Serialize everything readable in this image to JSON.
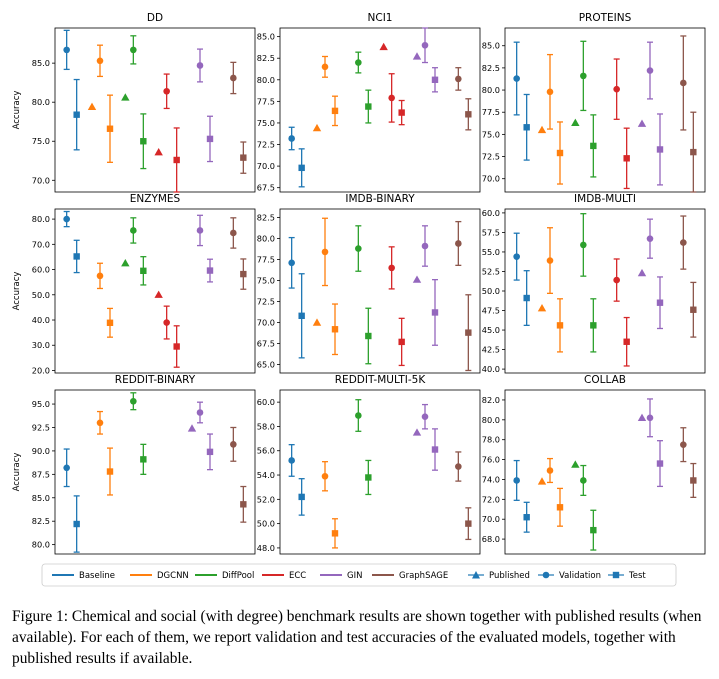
{
  "caption": "Figure 1: Chemical and social (with degree) benchmark results are shown together with published results (when available). For each of them, we report validation and test accuracies of the evaluated models, together with published results if available.",
  "colors": {
    "Baseline": "#1f77b4",
    "DGCNN": "#ff7f0e",
    "DiffPool": "#2ca02c",
    "ECC": "#d62728",
    "GIN": "#9467bd",
    "GraphSAGE": "#8c564b"
  },
  "chart_data": [
    {
      "type": "scatter",
      "title": "DD",
      "ylabel": "Accuracy",
      "ylim": [
        68.5,
        89.5
      ],
      "yticks": [
        70.0,
        75.0,
        80.0,
        85.0,
        90.0
      ],
      "models": [
        "Baseline",
        "DGCNN",
        "DiffPool",
        "ECC",
        "GIN",
        "GraphSAGE"
      ],
      "published": [
        null,
        79.4,
        80.6,
        73.6,
        null,
        null
      ],
      "validation": [
        [
          86.7,
          2.5
        ],
        [
          85.3,
          2.0
        ],
        [
          86.7,
          1.8
        ],
        [
          81.4,
          2.2
        ],
        [
          84.7,
          2.1
        ],
        [
          83.1,
          2.0
        ]
      ],
      "test": [
        [
          78.4,
          4.5
        ],
        [
          76.6,
          4.3
        ],
        [
          75.0,
          3.5
        ],
        [
          72.6,
          4.1
        ],
        [
          75.3,
          2.9
        ],
        [
          72.9,
          2.0
        ]
      ]
    },
    {
      "type": "scatter",
      "title": "NCI1",
      "ylim": [
        67.0,
        86.0
      ],
      "yticks": [
        67.5,
        70.0,
        72.5,
        75.0,
        77.5,
        80.0,
        82.5,
        85.0
      ],
      "models": [
        "Baseline",
        "DGCNN",
        "DiffPool",
        "ECC",
        "GIN",
        "GraphSAGE"
      ],
      "published": [
        null,
        74.4,
        null,
        83.8,
        82.7,
        null
      ],
      "validation": [
        [
          73.2,
          1.3
        ],
        [
          81.5,
          1.2
        ],
        [
          82.0,
          1.2
        ],
        [
          77.9,
          2.8
        ],
        [
          84.0,
          2.0
        ],
        [
          80.1,
          1.3
        ]
      ],
      "test": [
        [
          69.8,
          2.2
        ],
        [
          76.4,
          1.7
        ],
        [
          76.9,
          1.9
        ],
        [
          76.2,
          1.4
        ],
        [
          80.0,
          1.4
        ],
        [
          76.0,
          1.8
        ]
      ]
    },
    {
      "type": "scatter",
      "title": "PROTEINS",
      "ylim": [
        68.5,
        87.0
      ],
      "yticks": [
        70.0,
        72.5,
        75.0,
        77.5,
        80.0,
        82.5,
        85.0
      ],
      "models": [
        "Baseline",
        "DGCNN",
        "DiffPool",
        "ECC",
        "GIN",
        "GraphSAGE"
      ],
      "published": [
        null,
        75.5,
        76.3,
        null,
        76.2,
        null
      ],
      "validation": [
        [
          81.3,
          4.1
        ],
        [
          79.8,
          4.2
        ],
        [
          81.6,
          3.9
        ],
        [
          80.1,
          3.4
        ],
        [
          82.2,
          3.2
        ],
        [
          80.8,
          5.3
        ]
      ],
      "test": [
        [
          75.8,
          3.7
        ],
        [
          72.9,
          3.5
        ],
        [
          73.7,
          3.5
        ],
        [
          72.3,
          3.4
        ],
        [
          73.3,
          4.0
        ],
        [
          73.0,
          4.5
        ]
      ]
    },
    {
      "type": "scatter",
      "title": "ENZYMES",
      "ylabel": "Accuracy",
      "ylim": [
        19.0,
        84.0
      ],
      "yticks": [
        20.0,
        30.0,
        40.0,
        50.0,
        60.0,
        70.0,
        80.0
      ],
      "models": [
        "Baseline",
        "DGCNN",
        "DiffPool",
        "ECC",
        "GIN",
        "GraphSAGE"
      ],
      "published": [
        null,
        null,
        62.5,
        50.0,
        null,
        null
      ],
      "validation": [
        [
          80.0,
          3.0
        ],
        [
          57.5,
          5.0
        ],
        [
          75.5,
          5.0
        ],
        [
          39.0,
          6.5
        ],
        [
          75.5,
          6.0
        ],
        [
          74.5,
          6.0
        ]
      ],
      "test": [
        [
          65.2,
          6.4
        ],
        [
          38.9,
          5.7
        ],
        [
          59.5,
          5.6
        ],
        [
          29.5,
          8.2
        ],
        [
          59.6,
          4.5
        ],
        [
          58.2,
          6.0
        ]
      ]
    },
    {
      "type": "scatter",
      "title": "IMDB-BINARY",
      "ylim": [
        64.0,
        83.5
      ],
      "yticks": [
        65.0,
        67.5,
        70.0,
        72.5,
        75.0,
        77.5,
        80.0,
        82.5
      ],
      "models": [
        "Baseline",
        "DGCNN",
        "DiffPool",
        "ECC",
        "GIN",
        "GraphSAGE"
      ],
      "published": [
        null,
        70.0,
        null,
        null,
        75.1,
        null
      ],
      "validation": [
        [
          77.1,
          3.0
        ],
        [
          78.4,
          4.0
        ],
        [
          78.8,
          2.7
        ],
        [
          76.5,
          2.5
        ],
        [
          79.1,
          2.4
        ],
        [
          79.4,
          2.6
        ]
      ],
      "test": [
        [
          70.8,
          5.0
        ],
        [
          69.2,
          3.0
        ],
        [
          68.4,
          3.3
        ],
        [
          67.7,
          2.8
        ],
        [
          71.2,
          3.9
        ],
        [
          68.8,
          4.5
        ]
      ]
    },
    {
      "type": "scatter",
      "title": "IMDB-MULTI",
      "ylim": [
        39.5,
        60.5
      ],
      "yticks": [
        40.0,
        42.5,
        45.0,
        47.5,
        50.0,
        52.5,
        55.0,
        57.5,
        60.0
      ],
      "models": [
        "Baseline",
        "DGCNN",
        "DiffPool",
        "ECC",
        "GIN",
        "GraphSAGE"
      ],
      "published": [
        null,
        47.8,
        null,
        null,
        52.3,
        null
      ],
      "validation": [
        [
          54.4,
          3.0
        ],
        [
          53.9,
          4.2
        ],
        [
          55.9,
          4.0
        ],
        [
          51.4,
          2.7
        ],
        [
          56.7,
          2.5
        ],
        [
          56.2,
          3.4
        ]
      ],
      "test": [
        [
          49.1,
          3.5
        ],
        [
          45.6,
          3.4
        ],
        [
          45.6,
          3.4
        ],
        [
          43.5,
          3.1
        ],
        [
          48.5,
          3.3
        ],
        [
          47.6,
          3.5
        ]
      ]
    },
    {
      "type": "scatter",
      "title": "REDDIT-BINARY",
      "ylabel": "Accuracy",
      "ylim": [
        79.0,
        96.5
      ],
      "yticks": [
        80.0,
        82.5,
        85.0,
        87.5,
        90.0,
        92.5,
        95.0
      ],
      "models": [
        "Baseline",
        "DGCNN",
        "DiffPool",
        "ECC",
        "GIN",
        "GraphSAGE"
      ],
      "published": [
        null,
        null,
        null,
        null,
        92.4,
        null
      ],
      "validation": [
        [
          88.2,
          2.0
        ],
        [
          93.0,
          1.2
        ],
        [
          95.3,
          0.9
        ],
        null,
        [
          94.1,
          1.1
        ],
        [
          90.7,
          1.8
        ]
      ],
      "test": [
        [
          82.2,
          3.0
        ],
        [
          87.8,
          2.5
        ],
        [
          89.1,
          1.6
        ],
        null,
        [
          89.9,
          1.9
        ],
        [
          84.3,
          1.9
        ]
      ]
    },
    {
      "type": "scatter",
      "title": "REDDIT-MULTI-5K",
      "ylim": [
        47.5,
        61.0
      ],
      "yticks": [
        48.0,
        50.0,
        52.0,
        54.0,
        56.0,
        58.0,
        60.0
      ],
      "models": [
        "Baseline",
        "DGCNN",
        "DiffPool",
        "ECC",
        "GIN",
        "GraphSAGE"
      ],
      "published": [
        null,
        null,
        null,
        null,
        57.5,
        null
      ],
      "validation": [
        [
          55.2,
          1.3
        ],
        [
          53.9,
          1.2
        ],
        [
          58.9,
          1.3
        ],
        null,
        [
          58.8,
          1.0
        ],
        [
          54.7,
          1.2
        ]
      ],
      "test": [
        [
          52.2,
          1.5
        ],
        [
          49.2,
          1.2
        ],
        [
          53.8,
          1.4
        ],
        null,
        [
          56.1,
          1.7
        ],
        [
          50.0,
          1.3
        ]
      ]
    },
    {
      "type": "scatter",
      "title": "COLLAB",
      "ylim": [
        66.5,
        83.0
      ],
      "yticks": [
        68.0,
        70.0,
        72.0,
        74.0,
        76.0,
        78.0,
        80.0,
        82.0
      ],
      "models": [
        "Baseline",
        "DGCNN",
        "DiffPool",
        "ECC",
        "GIN",
        "GraphSAGE"
      ],
      "published": [
        null,
        73.8,
        75.5,
        null,
        80.2,
        null
      ],
      "validation": [
        [
          73.9,
          2.0
        ],
        [
          74.9,
          1.2
        ],
        [
          73.9,
          1.5
        ],
        null,
        [
          80.2,
          1.9
        ],
        [
          77.5,
          1.7
        ]
      ],
      "test": [
        [
          70.2,
          1.5
        ],
        [
          71.2,
          1.9
        ],
        [
          68.9,
          2.0
        ],
        null,
        [
          75.6,
          2.3
        ],
        [
          73.9,
          1.7
        ]
      ]
    }
  ],
  "legend": {
    "models": [
      "Baseline",
      "DGCNN",
      "DiffPool",
      "ECC",
      "GIN",
      "GraphSAGE"
    ],
    "markers": [
      "Published",
      "Validation",
      "Test"
    ]
  }
}
